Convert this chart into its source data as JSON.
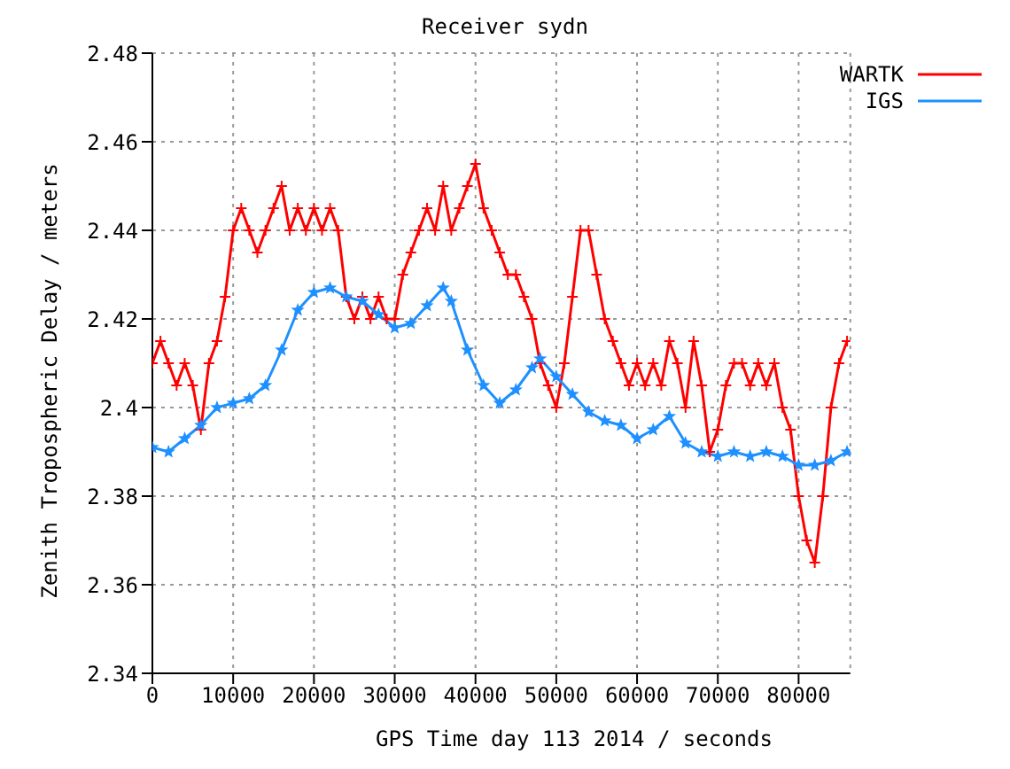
{
  "chart_data": {
    "type": "line",
    "title": "Receiver sydn",
    "xlabel": "GPS Time day 113 2014 / seconds",
    "ylabel": "Zenith Tropospheric Delay / meters",
    "xlim": [
      0,
      86400
    ],
    "xticks": [
      0,
      10000,
      20000,
      30000,
      40000,
      50000,
      60000,
      70000,
      80000
    ],
    "ylim": [
      2.34,
      2.48
    ],
    "yticks": [
      2.34,
      2.36,
      2.38,
      2.4,
      2.42,
      2.44,
      2.46,
      2.48
    ],
    "grid": true,
    "legend": "top right",
    "series": [
      {
        "name": "WARTK",
        "color": "#ff0000",
        "marker": "cross",
        "x": [
          0,
          1000,
          2000,
          3000,
          4000,
          5000,
          6000,
          7000,
          8000,
          9000,
          10000,
          11000,
          12000,
          13000,
          14000,
          15000,
          16000,
          17000,
          18000,
          19000,
          20000,
          21000,
          22000,
          23000,
          24000,
          25000,
          26000,
          27000,
          28000,
          29000,
          30000,
          31000,
          32000,
          33000,
          34000,
          35000,
          36000,
          37000,
          38000,
          39000,
          40000,
          41000,
          42000,
          43000,
          44000,
          45000,
          46000,
          47000,
          48000,
          49000,
          50000,
          51000,
          52000,
          53000,
          54000,
          55000,
          56000,
          57000,
          58000,
          59000,
          60000,
          61000,
          62000,
          63000,
          64000,
          65000,
          66000,
          67000,
          68000,
          69000,
          70000,
          71000,
          72000,
          73000,
          74000,
          75000,
          76000,
          77000,
          78000,
          79000,
          80000,
          81000,
          82000,
          83000,
          84000,
          85000,
          86000
        ],
        "values": [
          2.41,
          2.415,
          2.41,
          2.405,
          2.41,
          2.405,
          2.395,
          2.41,
          2.415,
          2.425,
          2.44,
          2.445,
          2.44,
          2.435,
          2.44,
          2.445,
          2.45,
          2.44,
          2.445,
          2.44,
          2.445,
          2.44,
          2.445,
          2.44,
          2.425,
          2.42,
          2.425,
          2.42,
          2.425,
          2.42,
          2.42,
          2.43,
          2.435,
          2.44,
          2.445,
          2.44,
          2.45,
          2.44,
          2.445,
          2.45,
          2.455,
          2.445,
          2.44,
          2.435,
          2.43,
          2.43,
          2.425,
          2.42,
          2.41,
          2.405,
          2.4,
          2.41,
          2.425,
          2.44,
          2.44,
          2.43,
          2.42,
          2.415,
          2.41,
          2.405,
          2.41,
          2.405,
          2.41,
          2.405,
          2.415,
          2.41,
          2.4,
          2.415,
          2.405,
          2.39,
          2.395,
          2.405,
          2.41,
          2.41,
          2.405,
          2.41,
          2.405,
          2.41,
          2.4,
          2.395,
          2.38,
          2.37,
          2.365,
          2.38,
          2.4,
          2.41,
          2.415
        ]
      },
      {
        "name": "IGS",
        "color": "#1e90ff",
        "marker": "star",
        "x": [
          0,
          2000,
          4000,
          6000,
          8000,
          10000,
          12000,
          14000,
          16000,
          18000,
          20000,
          22000,
          24000,
          26000,
          28000,
          30000,
          32000,
          34000,
          36000,
          37000,
          39000,
          41000,
          43000,
          45000,
          47000,
          48000,
          50000,
          52000,
          54000,
          56000,
          58000,
          60000,
          62000,
          64000,
          66000,
          68000,
          70000,
          72000,
          74000,
          76000,
          78000,
          80000,
          82000,
          84000,
          86000
        ],
        "values": [
          2.391,
          2.39,
          2.393,
          2.396,
          2.4,
          2.401,
          2.402,
          2.405,
          2.413,
          2.422,
          2.426,
          2.427,
          2.425,
          2.424,
          2.421,
          2.418,
          2.419,
          2.423,
          2.427,
          2.424,
          2.413,
          2.405,
          2.401,
          2.404,
          2.409,
          2.411,
          2.407,
          2.403,
          2.399,
          2.397,
          2.396,
          2.393,
          2.395,
          2.398,
          2.392,
          2.39,
          2.389,
          2.39,
          2.389,
          2.39,
          2.389,
          2.387,
          2.387,
          2.388,
          2.39
        ]
      }
    ]
  }
}
